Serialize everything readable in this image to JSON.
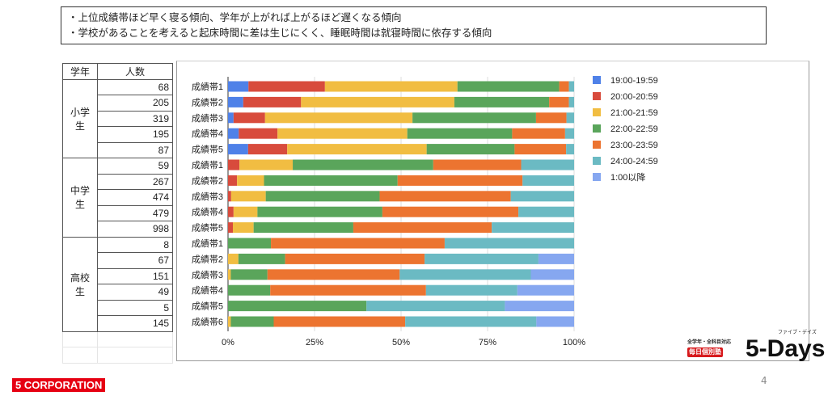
{
  "summary": [
    "・上位成績帯ほど早く寝る傾向、学年が上がれば上がるほど遅くなる傾向",
    "・学校があることを考えると起床時間に差は生じにくく、睡眠時間は就寝時間に依存する傾向"
  ],
  "table": {
    "headers": [
      "学年",
      "人数"
    ],
    "groups": [
      {
        "grade": "小学生",
        "counts": [
          68,
          205,
          319,
          195,
          87
        ]
      },
      {
        "grade": "中学生",
        "counts": [
          59,
          267,
          474,
          479,
          998
        ]
      },
      {
        "grade": "高校生",
        "counts": [
          8,
          67,
          151,
          49,
          5,
          145
        ]
      }
    ]
  },
  "chart_data": {
    "type": "bar",
    "orientation": "horizontal",
    "stacked": "percent",
    "categories": [
      "成績帯1",
      "成績帯2",
      "成績帯3",
      "成績帯4",
      "成績帯5",
      "成績帯1",
      "成績帯2",
      "成績帯3",
      "成績帯4",
      "成績帯5",
      "成績帯1",
      "成績帯2",
      "成績帯3",
      "成績帯4",
      "成績帯5",
      "成績帯6"
    ],
    "xticks": [
      "0%",
      "25%",
      "50%",
      "75%",
      "100%"
    ],
    "xlim": [
      0,
      100
    ],
    "grid": true,
    "legend": "right",
    "series": [
      {
        "name": "19:00-19:59",
        "color": "#4f81e8",
        "values": [
          5.9,
          4.4,
          1.6,
          3.1,
          5.8,
          0,
          0,
          0,
          0,
          0,
          0,
          0,
          0,
          0,
          0,
          0
        ]
      },
      {
        "name": "20:00-20:59",
        "color": "#d84b3c",
        "values": [
          22.1,
          16.7,
          9.1,
          11.2,
          11.3,
          3.3,
          2.6,
          0.9,
          1.6,
          1.4,
          0,
          0,
          0,
          0,
          0,
          0
        ]
      },
      {
        "name": "21:00-21:59",
        "color": "#f1bd42",
        "values": [
          38.3,
          44.3,
          42.6,
          37.5,
          40.3,
          15.4,
          7.8,
          10.0,
          6.9,
          6.0,
          0,
          3.0,
          0.8,
          0,
          0,
          0.8
        ]
      },
      {
        "name": "22:00-22:59",
        "color": "#5aa55b",
        "values": [
          29.4,
          27.4,
          35.7,
          30.3,
          25.4,
          40.6,
          38.6,
          32.9,
          36.1,
          28.8,
          12.4,
          13.5,
          10.6,
          12.2,
          40.0,
          12.4
        ]
      },
      {
        "name": "23:00-23:59",
        "color": "#ec7430",
        "values": [
          2.8,
          5.7,
          8.8,
          15.3,
          14.9,
          25.4,
          36.1,
          37.9,
          39.3,
          40.0,
          50.2,
          40.3,
          38.2,
          45.0,
          0,
          38.0
        ]
      },
      {
        "name": "24:00-24:59",
        "color": "#6bbac3",
        "values": [
          1.5,
          1.5,
          2.2,
          2.6,
          2.3,
          15.3,
          14.9,
          18.3,
          16.1,
          23.8,
          37.4,
          32.9,
          37.9,
          26.4,
          40.0,
          37.9
        ]
      },
      {
        "name": "1:00以降",
        "color": "#86a7f0",
        "values": [
          0,
          0,
          0,
          0,
          0,
          0,
          0,
          0,
          0,
          0,
          0,
          10.3,
          12.5,
          16.4,
          20.0,
          10.9
        ]
      }
    ]
  },
  "brand": {
    "sub": "全学年・全科目対応",
    "badge": "毎日個別塾",
    "name": "5-Days",
    "kana": "ファイブ・デイズ"
  },
  "logo": "5 CORPORATION",
  "page_number": "4"
}
